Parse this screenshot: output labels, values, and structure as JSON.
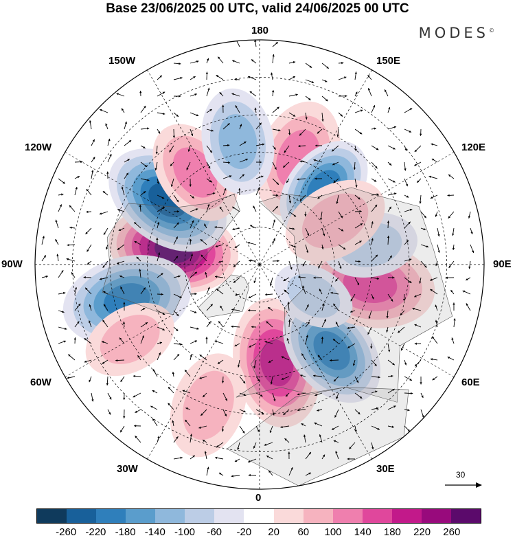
{
  "title": "Base 23/06/2025 00 UTC, valid 24/06/2025 00 UTC",
  "brand": "MODES",
  "brand_mark": "©",
  "longitude_labels": {
    "lon_180": "180",
    "lon_150w": "150W",
    "lon_150e": "150E",
    "lon_120w": "120W",
    "lon_120e": "120E",
    "lon_90w": "90W",
    "lon_90e": "90E",
    "lon_60w": "60W",
    "lon_60e": "60E",
    "lon_30w": "30W",
    "lon_30e": "30E",
    "lon_0": "0"
  },
  "reference_vector": {
    "label": "30"
  },
  "colorbar": {
    "colors": [
      "#0f3a5c",
      "#18609a",
      "#2f7fbb",
      "#5a9dcc",
      "#8fb8dc",
      "#bccde6",
      "#e3e3f1",
      "#ffffff",
      "#fadada",
      "#f6b3bf",
      "#ef7fae",
      "#e0479c",
      "#c2198a",
      "#980a7c",
      "#5b0a6b"
    ],
    "labels": [
      "-260",
      "-220",
      "-180",
      "-140",
      "-100",
      "-60",
      "-20",
      "20",
      "60",
      "100",
      "140",
      "180",
      "220",
      "260"
    ]
  },
  "anomalies": [
    {
      "lon": -100,
      "lat": 55,
      "value": 270,
      "r": 1.0
    },
    {
      "lon": -125,
      "lat": 45,
      "value": -240,
      "r": 1.0
    },
    {
      "lon": -75,
      "lat": 35,
      "value": -190,
      "r": 1.0
    },
    {
      "lon": -145,
      "lat": 45,
      "value": 120,
      "r": 0.8
    },
    {
      "lon": 160,
      "lat": 45,
      "value": 120,
      "r": 0.9
    },
    {
      "lon": -170,
      "lat": 40,
      "value": -100,
      "r": 0.8
    },
    {
      "lon": 140,
      "lat": 50,
      "value": -180,
      "r": 0.8
    },
    {
      "lon": 10,
      "lat": 50,
      "value": 190,
      "r": 1.0
    },
    {
      "lon": 40,
      "lat": 45,
      "value": -180,
      "r": 0.9
    },
    {
      "lon": 80,
      "lat": 45,
      "value": 150,
      "r": 1.0
    },
    {
      "lon": 100,
      "lat": 45,
      "value": -90,
      "r": 0.7
    },
    {
      "lon": 120,
      "lat": 55,
      "value": 80,
      "r": 0.8
    },
    {
      "lon": -60,
      "lat": 30,
      "value": 70,
      "r": 0.7
    },
    {
      "lon": -20,
      "lat": 30,
      "value": 60,
      "r": 0.8
    },
    {
      "lon": 60,
      "lat": 65,
      "value": -60,
      "r": 0.6
    }
  ]
}
